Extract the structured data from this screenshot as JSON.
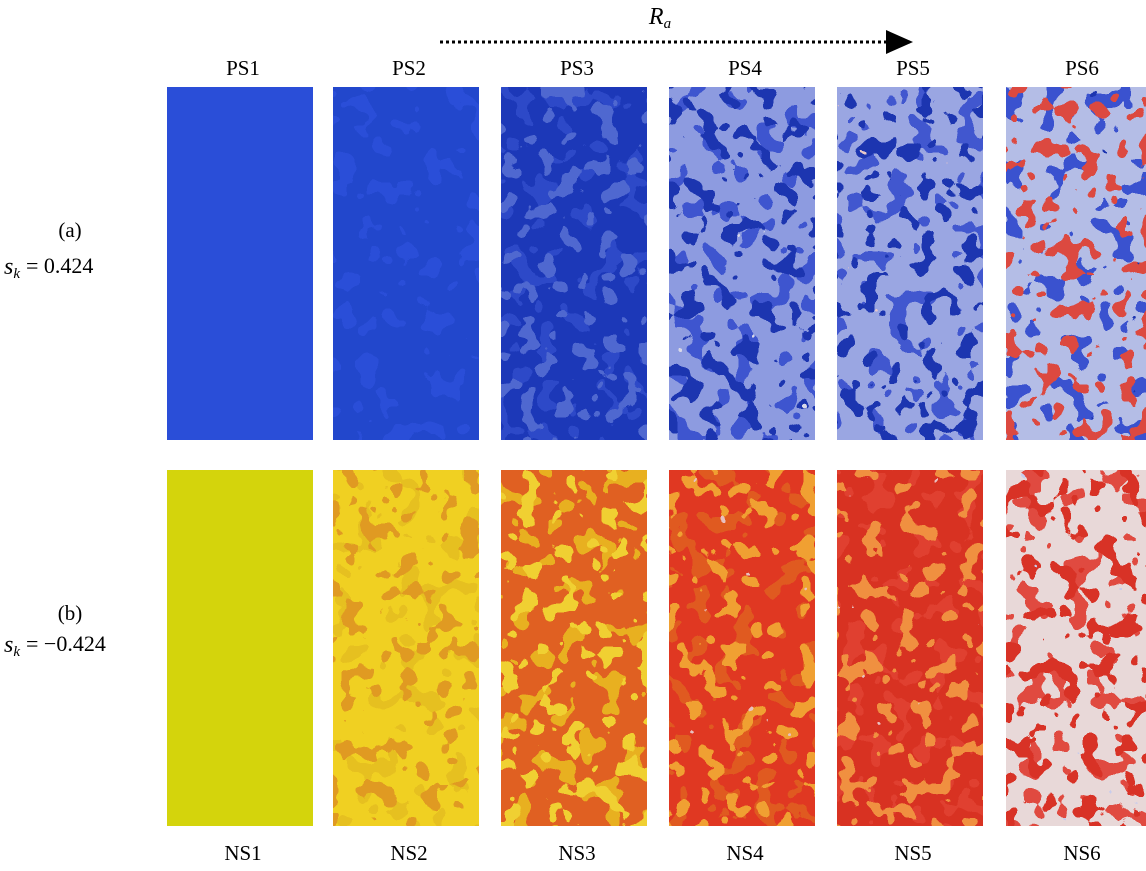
{
  "header": {
    "arrow_label": {
      "symbol": "R",
      "subscript": "a"
    }
  },
  "columns": {
    "top": [
      "PS1",
      "PS2",
      "PS3",
      "PS4",
      "PS5",
      "PS6"
    ],
    "bottom": [
      "NS1",
      "NS2",
      "NS3",
      "NS4",
      "NS5",
      "NS6"
    ]
  },
  "rows": [
    {
      "label": "(a)",
      "symbol": "s",
      "subscript": "k",
      "value": "= 0.424"
    },
    {
      "label": "(b)",
      "symbol": "s",
      "subscript": "k",
      "value": "= −0.424"
    }
  ]
}
